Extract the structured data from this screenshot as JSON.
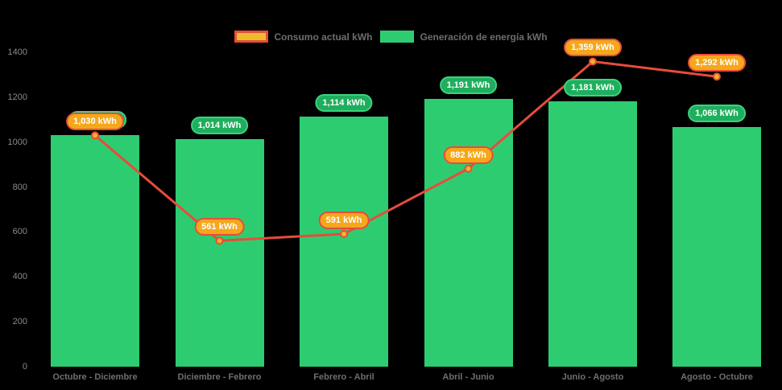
{
  "chart_data": {
    "type": "bar",
    "title": "",
    "categories": [
      "Octubre - Diciembre",
      "Diciembre - Febrero",
      "Febrero - Abril",
      "Abril - Junio",
      "Junio - Agosto",
      "Agosto - Octubre"
    ],
    "series": [
      {
        "name": "Consumo actual kWh",
        "type": "line",
        "values": [
          1030,
          561,
          591,
          882,
          1359,
          1292
        ],
        "point_labels": [
          "1,030 kWh",
          "561 kWh",
          "591 kWh",
          "882 kWh",
          "1,359 kWh",
          "1,292 kWh"
        ]
      },
      {
        "name": "Generación de energía kWh",
        "type": "bar",
        "values": [
          1030,
          1014,
          1114,
          1191,
          1181,
          1066
        ],
        "point_labels": [
          "1,030 kWh",
          "1,014 kWh",
          "1,114 kWh",
          "1,191 kWh",
          "1,181 kWh",
          "1,066 kWh"
        ]
      }
    ],
    "xlabel": "",
    "ylabel": "",
    "ylim": [
      0,
      1400
    ],
    "y_ticks": [
      "0",
      "200",
      "400",
      "600",
      "800",
      "1000",
      "1200",
      "1400"
    ],
    "grid": false,
    "legend_position": "top",
    "background": "#000000"
  },
  "colors": {
    "bar_fill": "#2ecc71",
    "line": "#e74c3c",
    "point_fill": "#f5b325",
    "point_stroke": "#e74c3c",
    "consumo_pill_fill": "#f5a71c",
    "consumo_pill_border": "#e74c3c",
    "generacion_pill_fill": "#1fae5e",
    "generacion_pill_border": "#3bd37e",
    "legend_swatch_consumo_fill": "#eebd2b",
    "legend_swatch_consumo_border": "#e74c3c",
    "legend_swatch_generacion": "#2ecc71",
    "axis_tick_text": "#8a8a8a",
    "axis_category_text": "#6f6f6f",
    "legend_text": "#6d6d6d",
    "pill_text": "#ffffff"
  }
}
